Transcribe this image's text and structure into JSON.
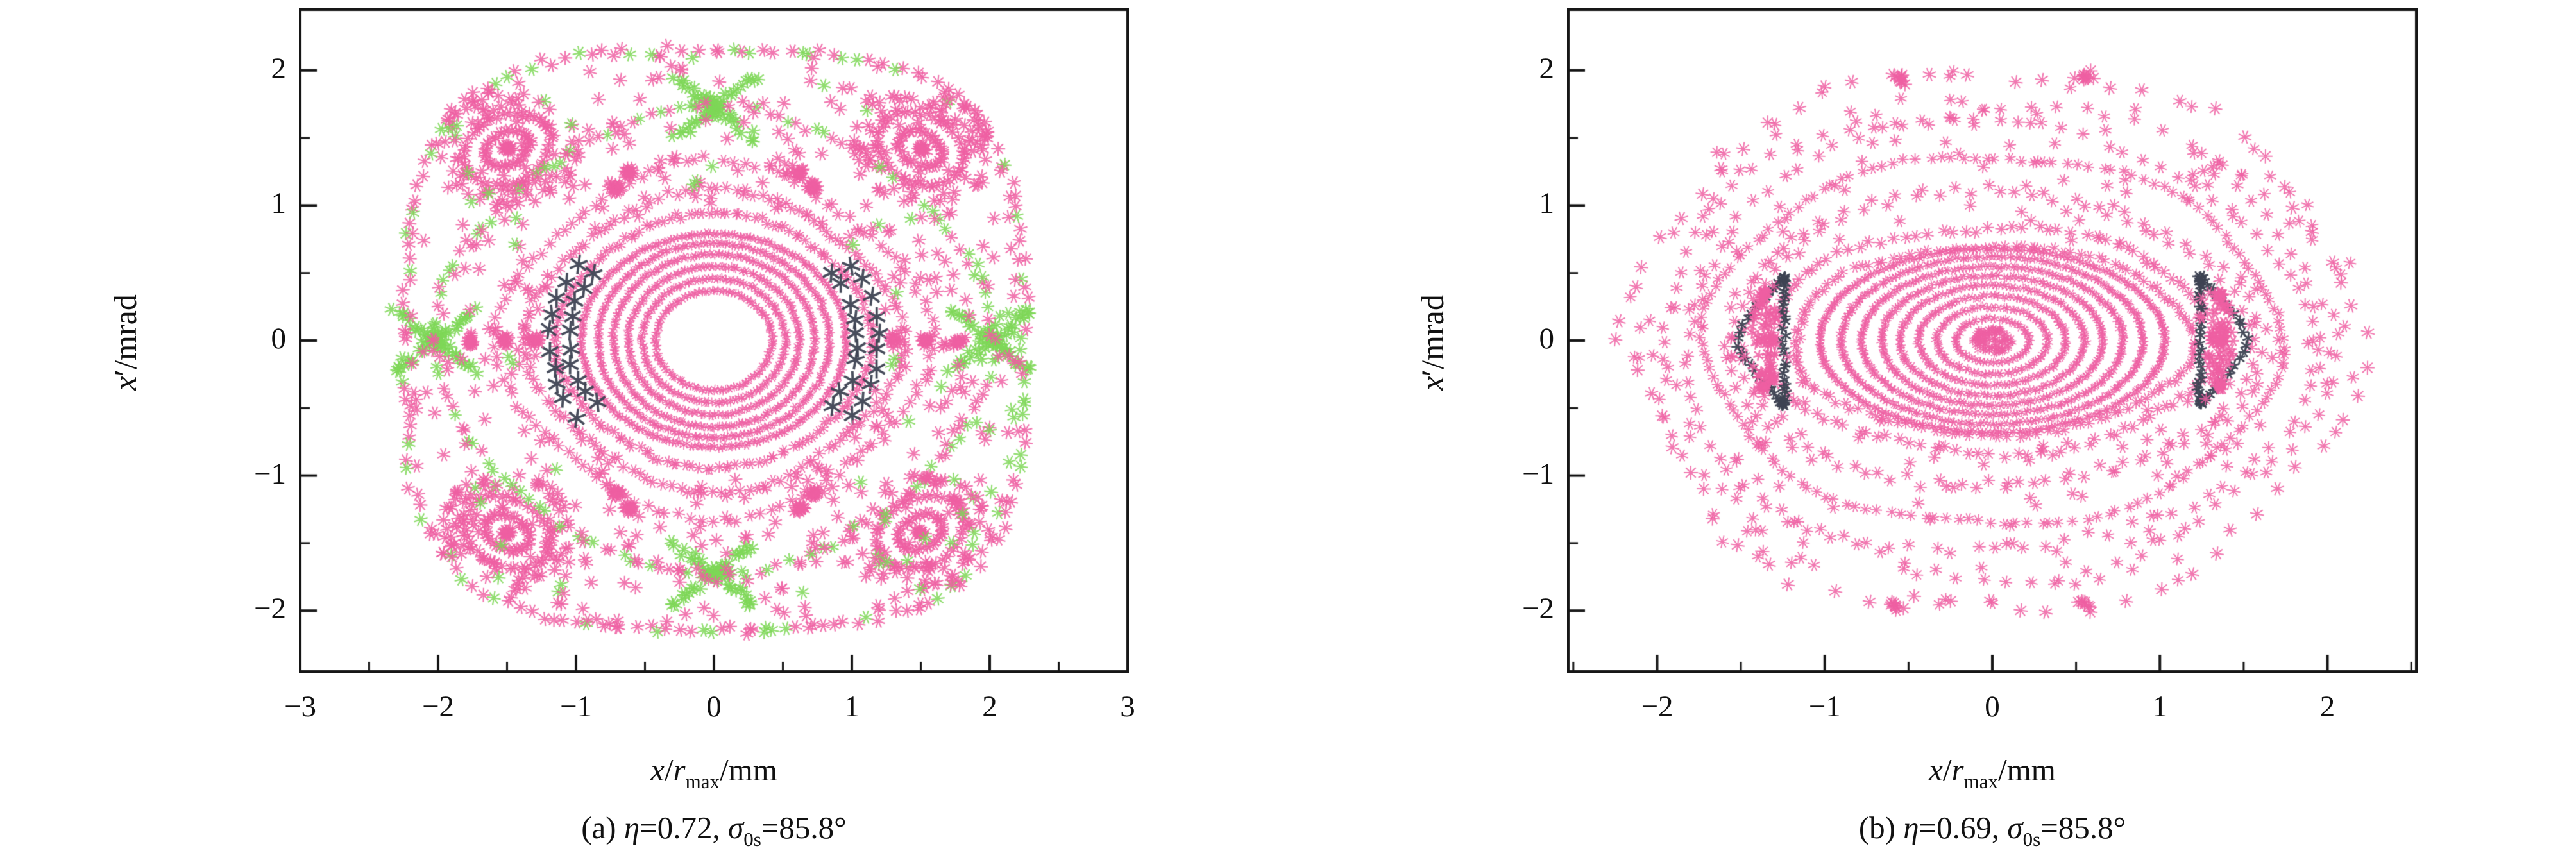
{
  "figure": {
    "background": "#ffffff",
    "panels": [
      {
        "id": "a",
        "ylabel": {
          "var": "x",
          "prime": "′",
          "unit": "/mrad"
        },
        "xlabel": {
          "var": "x",
          "slash": "/",
          "rvar": "r",
          "sub": "max",
          "unit": "/mm"
        },
        "caption": {
          "index": "(a) ",
          "eta": "η",
          "eta_eq": "=0.72, ",
          "sigma": "σ",
          "sigma_sub": "0s",
          "tail": "=85.8°"
        }
      },
      {
        "id": "b",
        "ylabel": {
          "var": "x",
          "prime": "′",
          "unit": "/mrad"
        },
        "xlabel": {
          "var": "x",
          "slash": "/",
          "rvar": "r",
          "sub": "max",
          "unit": "/mm"
        },
        "caption": {
          "index": "(b) ",
          "eta": "η",
          "eta_eq": "=0.69, ",
          "sigma": "σ",
          "sigma_sub": "0s",
          "tail": "=85.8°"
        }
      }
    ]
  },
  "chart_data": [
    {
      "type": "scatter",
      "title": "(a) η=0.72, σ0s=85.8°",
      "xlabel": "x/rmax/mm",
      "ylabel": "x′/mrad",
      "xlim": [
        -3,
        3
      ],
      "ylim": [
        -2.45,
        2.45
      ],
      "xticks": {
        "values": [
          -3,
          -2,
          -1,
          0,
          1,
          2,
          3
        ],
        "labels": [
          "−3",
          "−2",
          "−1",
          "0",
          "1",
          "2",
          "3"
        ],
        "minor_step": 0.5
      },
      "yticks": {
        "values": [
          -2,
          -1,
          0,
          1,
          2
        ],
        "labels": [
          "−2",
          "−1",
          "0",
          "1",
          "2"
        ],
        "minor_step": 0.5
      },
      "grid": false,
      "legend": null,
      "colors": {
        "pink": "#ee5fa2",
        "green": "#7ed757",
        "dark": "#3e4353"
      },
      "series": [
        {
          "kind": "rings",
          "color": "pink",
          "list": [
            [
              0.42,
              0.37
            ],
            [
              0.52,
              0.46
            ],
            [
              0.62,
              0.55
            ],
            [
              0.73,
              0.64
            ],
            [
              0.84,
              0.72
            ],
            [
              0.96,
              0.79
            ]
          ],
          "density": 340,
          "size": 7,
          "lw": 1.7,
          "jitter": 0.01
        },
        {
          "kind": "ring",
          "color": "pink",
          "rx": 1.13,
          "ry": 0.93,
          "n": 150,
          "size": 9,
          "lw": 1.9,
          "jitter": 0.016,
          "wobble": [
            4,
            0.018
          ]
        },
        {
          "kind": "ring",
          "color": "pink",
          "rx": 1.33,
          "ry": 1.09,
          "n": 135,
          "size": 10,
          "lw": 1.9,
          "jitter": 0.02,
          "wobble": [
            4,
            0.04
          ]
        },
        {
          "kind": "ring",
          "color": "pink",
          "rx": 1.52,
          "ry": 1.28,
          "n": 115,
          "size": 10,
          "lw": 1.9,
          "jitter": 0.025,
          "wobble": [
            4,
            0.05
          ],
          "knots": [
            [
              62,
              20
            ],
            [
              118,
              20
            ],
            [
              242,
              20
            ],
            [
              298,
              20
            ]
          ]
        },
        {
          "kind": "arc_pair",
          "color": "dark",
          "sides": [
            180,
            0
          ],
          "radii": [
            [
              1.04,
              0.86
            ],
            [
              1.2,
              0.99
            ]
          ],
          "half_span_deg": 38,
          "per_arc": 10,
          "size": 15,
          "lw": 3.8,
          "jitter": 0.022
        },
        {
          "kind": "islands",
          "color": "pink",
          "centers": [
            [
              1.5,
              1.42
            ],
            [
              -1.5,
              1.42
            ],
            [
              -1.5,
              -1.42
            ],
            [
              1.5,
              -1.42
            ]
          ],
          "loops": [
            [
              0.17,
              0.12
            ],
            [
              0.33,
              0.25
            ]
          ],
          "halo_r": 0.5,
          "halo_n": 75,
          "knot_n": 14,
          "size": 11,
          "lw": 2.2,
          "rot_deg": 28
        },
        {
          "kind": "crosses",
          "color": "green",
          "centers": [
            [
              0,
              1.73
            ],
            [
              0,
              -1.73
            ],
            [
              -2.02,
              0
            ],
            [
              2.02,
              0
            ]
          ],
          "arm_len": 0.75,
          "arm_angles": [
            38,
            142
          ],
          "n_per_arm": 24,
          "size": 11,
          "lw": 2.3,
          "jitter": 0.035,
          "extra_blob": 16
        },
        {
          "kind": "superellipse",
          "color": "pink",
          "a": 2.05,
          "b": 1.75,
          "p": 1.7,
          "n": 150,
          "size": 10,
          "lw": 2.1,
          "jitter": 0.03,
          "green_frac": 0.5
        },
        {
          "kind": "superellipse",
          "color": "pink",
          "a": 2.24,
          "b": 2.14,
          "p": 3.4,
          "n": 175,
          "size": 11,
          "lw": 2.2,
          "jitter": 0.035,
          "green_frac": 0.25
        },
        {
          "kind": "sprinkle",
          "color": "pink",
          "green_frac": 0.1,
          "n": 430,
          "size": 11,
          "lw": 2.1,
          "inner": [
            1.1,
            0.9
          ],
          "outer": [
            2.24,
            2.14
          ],
          "outer_p": 3.4
        },
        {
          "kind": "knots",
          "color": "pink",
          "list": [
            [
              1.52,
              0
            ],
            [
              -1.52,
              0
            ],
            [
              1.77,
              0
            ],
            [
              -1.77,
              0
            ],
            [
              1.3,
              0
            ],
            [
              -1.3,
              0
            ],
            [
              0.62,
              1.24
            ],
            [
              -0.62,
              1.24
            ],
            [
              0.62,
              -1.24
            ],
            [
              -0.62,
              -1.24
            ]
          ],
          "n": 16,
          "sigma": 0.035,
          "size": 10,
          "lw": 2.1
        }
      ]
    },
    {
      "type": "scatter",
      "title": "(b) η=0.69, σ0s=85.8°",
      "xlabel": "x/rmax/mm",
      "ylabel": "x′/mrad",
      "xlim": [
        -2.53,
        2.53
      ],
      "ylim": [
        -2.45,
        2.45
      ],
      "xticks": {
        "values": [
          -2,
          -1,
          0,
          1,
          2
        ],
        "labels": [
          "−2",
          "−1",
          "0",
          "1",
          "2"
        ],
        "minor_step": 0.5
      },
      "yticks": {
        "values": [
          -2,
          -1,
          0,
          1,
          2
        ],
        "labels": [
          "−2",
          "−1",
          "0",
          "1",
          "2"
        ],
        "minor_step": 0.5
      },
      "grid": false,
      "legend": null,
      "colors": {
        "pink": "#ee5fa2",
        "green": "#7ed757",
        "dark": "#3e4353"
      },
      "series": [
        {
          "kind": "blob_core",
          "color": "pink",
          "rx": 0.13,
          "ry": 0.1,
          "n": 140,
          "size": 6,
          "lw": 1.6,
          "hole": 0.028
        },
        {
          "kind": "rings",
          "color": "pink",
          "list": [
            [
              0.22,
              0.16
            ],
            [
              0.33,
              0.25
            ],
            [
              0.44,
              0.33
            ],
            [
              0.55,
              0.41
            ],
            [
              0.66,
              0.48
            ],
            [
              0.78,
              0.55
            ],
            [
              0.9,
              0.62
            ],
            [
              1.03,
              0.68
            ]
          ],
          "density": 330,
          "size": 7,
          "lw": 1.7,
          "jitter": 0.009
        },
        {
          "kind": "ring",
          "color": "pink",
          "rx": 1.19,
          "ry": 0.7,
          "n": 130,
          "size": 9,
          "lw": 1.8,
          "jitter": 0.014,
          "wobble": [
            5,
            0.02
          ]
        },
        {
          "kind": "ring",
          "color": "pink",
          "rx": 1.34,
          "ry": 0.84,
          "n": 115,
          "size": 10,
          "lw": 1.9,
          "jitter": 0.02,
          "wobble": [
            5,
            0.03
          ],
          "knots": [
            [
              0,
              12
            ],
            [
              180,
              12
            ]
          ]
        },
        {
          "kind": "ring",
          "color": "pink",
          "rx": 1.53,
          "ry": 1.07,
          "n": 115,
          "size": 10,
          "lw": 1.9,
          "jitter": 0.02,
          "wobble": [
            3,
            0.03
          ],
          "double": 0.04
        },
        {
          "kind": "ring",
          "color": "pink",
          "rx": 1.71,
          "ry": 1.37,
          "n": 155,
          "size": 9,
          "lw": 1.8,
          "jitter": 0.012,
          "wobble": [
            6,
            0.022
          ]
        },
        {
          "kind": "ring",
          "color": "pink",
          "rx": 1.87,
          "ry": 1.59,
          "n": 85,
          "size": 10,
          "lw": 1.9,
          "jitter": 0.025,
          "wobble": [
            3,
            0.04
          ]
        },
        {
          "kind": "ring",
          "color": "pink",
          "rx": 2.0,
          "ry": 1.74,
          "n": 78,
          "size": 10,
          "lw": 1.9,
          "jitter": 0.03,
          "wobble": [
            5,
            0.035
          ]
        },
        {
          "kind": "ring",
          "color": "pink",
          "rx": 2.15,
          "ry": 2.02,
          "n": 62,
          "size": 11,
          "lw": 2.0,
          "jitter": 0.04,
          "wobble": [
            6,
            0.04
          ],
          "knots": [
            [
              75,
              9
            ],
            [
              105,
              9
            ],
            [
              255,
              7
            ],
            [
              285,
              7
            ]
          ]
        },
        {
          "kind": "lens_pair",
          "centers_x": [
            1.37,
            -1.37
          ],
          "inner_r": 1.24,
          "outer_r": 1.52,
          "half_h": 0.47,
          "dark_n": 62,
          "pink_n": 85,
          "size": 9,
          "lw": 2.7
        },
        {
          "kind": "sprinkle",
          "color": "pink",
          "green_frac": 0,
          "n": 235,
          "size": 10,
          "lw": 1.9,
          "inner": [
            1.05,
            0.62
          ],
          "outer": [
            2.2,
            2.05
          ],
          "outer_p": 2.2
        }
      ]
    }
  ]
}
